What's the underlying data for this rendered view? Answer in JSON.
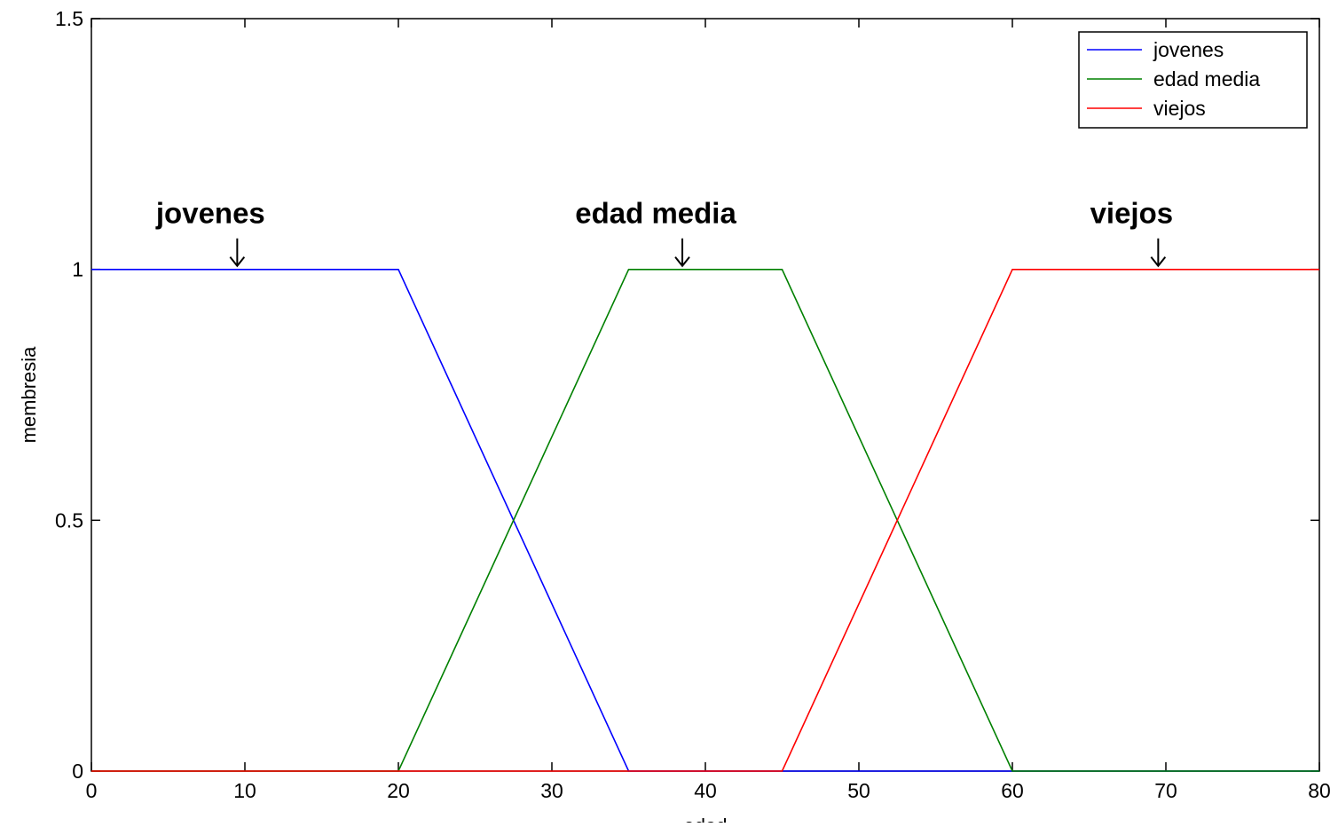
{
  "chart_data": {
    "type": "line",
    "title": "",
    "xlabel": "edad",
    "ylabel": "membresia",
    "xlim": [
      0,
      80
    ],
    "ylim": [
      0,
      1.5
    ],
    "xticks": [
      0,
      10,
      20,
      30,
      40,
      50,
      60,
      70,
      80
    ],
    "yticks": [
      0,
      0.5,
      1,
      1.5
    ],
    "ytick_labels": [
      "0",
      "0.5",
      "1",
      "1.5"
    ],
    "grid": false,
    "legend_position": "top-right",
    "series": [
      {
        "name": "jovenes",
        "color": "#0000ff",
        "x": [
          0,
          20,
          35,
          45,
          60,
          80
        ],
        "y": [
          1,
          1,
          0,
          0,
          0,
          0
        ]
      },
      {
        "name": "edad media",
        "color": "#008000",
        "x": [
          0,
          20,
          35,
          45,
          60,
          80
        ],
        "y": [
          0,
          0,
          1,
          1,
          0,
          0
        ]
      },
      {
        "name": "viejos",
        "color": "#ff0000",
        "x": [
          0,
          20,
          35,
          45,
          60,
          80
        ],
        "y": [
          0,
          0,
          0,
          0,
          1,
          1
        ]
      }
    ],
    "annotations": [
      {
        "text": "jovenes",
        "x": 9.5,
        "y": 1
      },
      {
        "text": "edad media",
        "x": 38.5,
        "y": 1
      },
      {
        "text": "viejos",
        "x": 69.5,
        "y": 1
      }
    ]
  }
}
